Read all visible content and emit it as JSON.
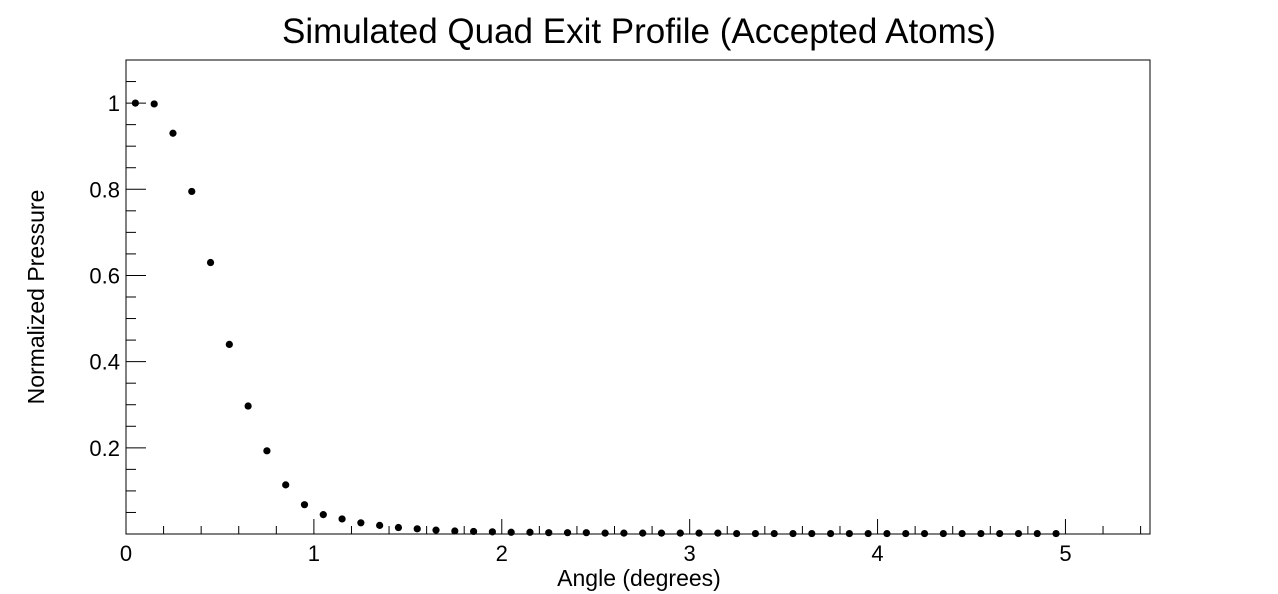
{
  "chart_data": {
    "type": "scatter",
    "title": "Simulated Quad Exit Profile (Accepted Atoms)",
    "xlabel": "Angle (degrees)",
    "ylabel": "Normalized Pressure",
    "xlim": [
      0,
      5.45
    ],
    "ylim": [
      0,
      1.1
    ],
    "grid": false,
    "legend": "none",
    "marker_color": "#000000",
    "x_ticks": [
      {
        "value": 0,
        "label": "0"
      },
      {
        "value": 1,
        "label": "1"
      },
      {
        "value": 2,
        "label": "2"
      },
      {
        "value": 3,
        "label": "3"
      },
      {
        "value": 4,
        "label": "4"
      },
      {
        "value": 5,
        "label": "5"
      }
    ],
    "y_ticks": [
      {
        "value": 0.2,
        "label": "0.2"
      },
      {
        "value": 0.4,
        "label": "0.4"
      },
      {
        "value": 0.6,
        "label": "0.6"
      },
      {
        "value": 0.8,
        "label": "0.8"
      },
      {
        "value": 1.0,
        "label": "1"
      }
    ],
    "series": [
      {
        "x": [
          0.05,
          0.15,
          0.25,
          0.35,
          0.45,
          0.55,
          0.65,
          0.75,
          0.85,
          0.95,
          1.05,
          1.15,
          1.25,
          1.35,
          1.45,
          1.55,
          1.65,
          1.75,
          1.85,
          1.95,
          2.05,
          2.15,
          2.25,
          2.35,
          2.45,
          2.55,
          2.65,
          2.75,
          2.85,
          2.95,
          3.05,
          3.15,
          3.25,
          3.35,
          3.45,
          3.55,
          3.65,
          3.75,
          3.85,
          3.95,
          4.05,
          4.15,
          4.25,
          4.35,
          4.45,
          4.55,
          4.65,
          4.75,
          4.85,
          4.95
        ],
        "y": [
          1.0,
          0.998,
          0.93,
          0.795,
          0.63,
          0.44,
          0.297,
          0.193,
          0.114,
          0.068,
          0.045,
          0.035,
          0.026,
          0.02,
          0.015,
          0.012,
          0.009,
          0.007,
          0.006,
          0.005,
          0.004,
          0.004,
          0.003,
          0.003,
          0.003,
          0.002,
          0.002,
          0.002,
          0.002,
          0.002,
          0.002,
          0.002,
          0.001,
          0.001,
          0.001,
          0.001,
          0.001,
          0.001,
          0.001,
          0.001,
          0.001,
          0.001,
          0.001,
          0.001,
          0.001,
          0.001,
          0.001,
          0.001,
          0.001,
          0.001
        ]
      }
    ]
  }
}
